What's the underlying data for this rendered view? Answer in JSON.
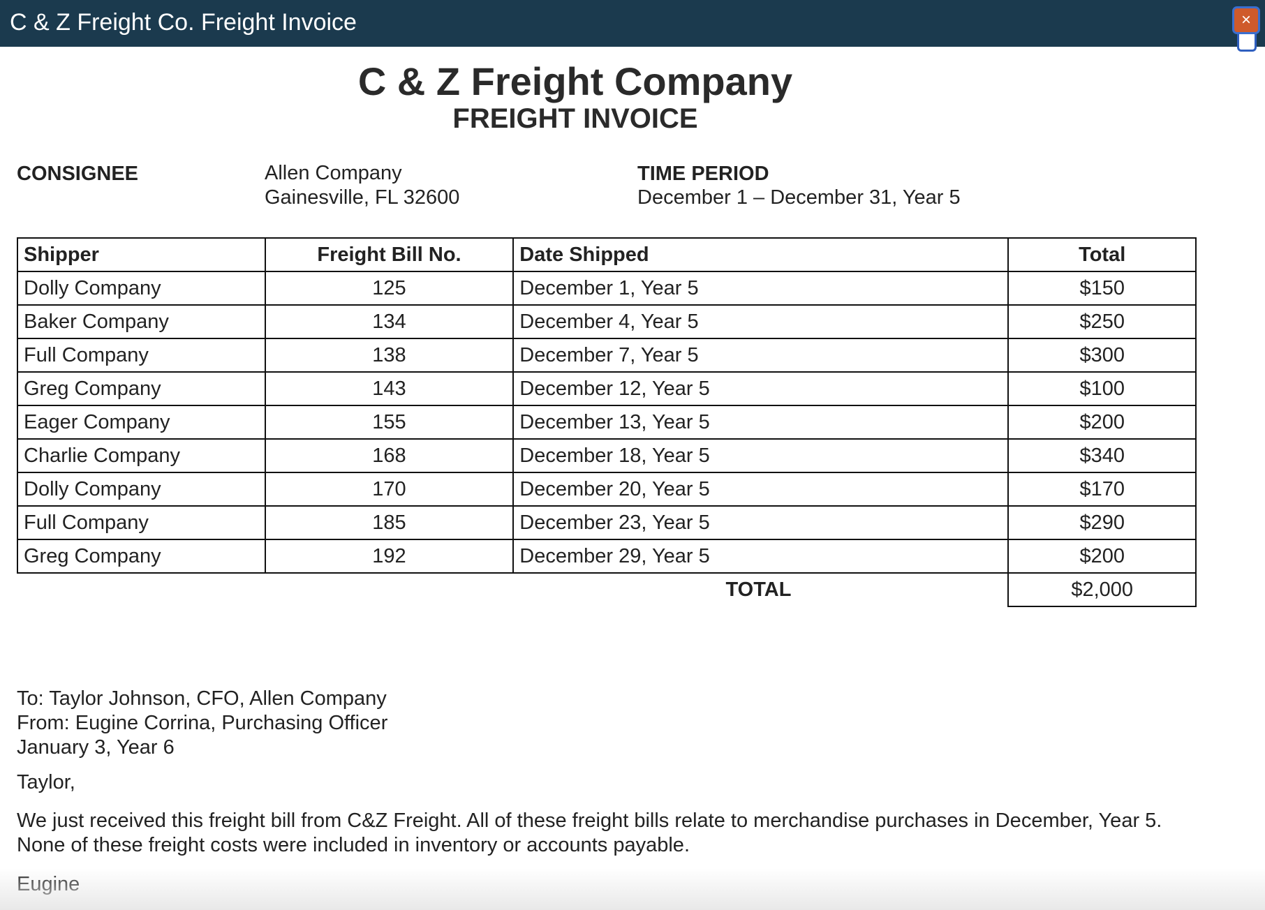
{
  "window": {
    "title": "C & Z Freight Co. Freight Invoice",
    "close_label": "×"
  },
  "invoice": {
    "company_name": "C & Z Freight Company",
    "title": "FREIGHT INVOICE",
    "consignee_label": "CONSIGNEE",
    "consignee_name": "Allen Company",
    "consignee_address": "Gainesville, FL 32600",
    "time_period_label": "TIME PERIOD",
    "time_period_value": "December 1 – December 31, Year 5"
  },
  "table": {
    "headers": [
      "Shipper",
      "Freight Bill No.",
      "Date Shipped",
      "Total"
    ],
    "rows": [
      [
        "Dolly Company",
        "125",
        "December 1, Year 5",
        "$150"
      ],
      [
        "Baker Company",
        "134",
        "December 4, Year 5",
        "$250"
      ],
      [
        "Full Company",
        "138",
        "December 7, Year 5",
        "$300"
      ],
      [
        "Greg Company",
        "143",
        "December 12, Year 5",
        "$100"
      ],
      [
        "Eager Company",
        "155",
        "December 13, Year 5",
        "$200"
      ],
      [
        "Charlie Company",
        "168",
        "December 18, Year 5",
        "$340"
      ],
      [
        "Dolly Company",
        "170",
        "December 20, Year 5",
        "$170"
      ],
      [
        "Full Company",
        "185",
        "December 23, Year 5",
        "$290"
      ],
      [
        "Greg Company",
        "192",
        "December 29, Year 5",
        "$200"
      ]
    ],
    "total_label": "TOTAL",
    "total_value": "$2,000"
  },
  "memo": {
    "to": "To: Taylor Johnson, CFO, Allen Company",
    "from": "From: Eugine Corrina, Purchasing Officer",
    "date": "January 3, Year 6",
    "greeting": "Taylor,",
    "body_line1": "We just received this freight bill from C&Z Freight. All of these freight bills relate to merchandise purchases in December, Year 5.",
    "body_line2": "None of these freight costs were included in inventory or accounts payable.",
    "signoff": "Eugine"
  }
}
